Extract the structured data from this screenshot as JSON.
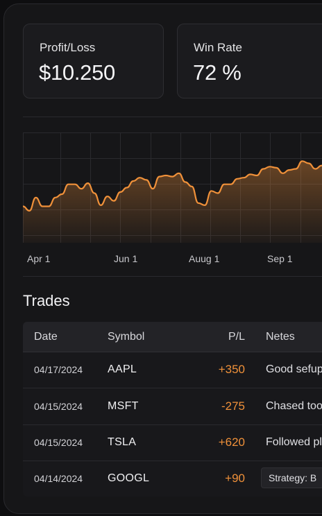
{
  "stats": {
    "profit_label": "Profit/Loss",
    "profit_value": "$10.250",
    "winrate_label": "Win Rate",
    "winrate_value": "72 %"
  },
  "chart_data": {
    "type": "area",
    "title": "",
    "xlabel": "",
    "ylabel": "",
    "x_ticks": [
      "Apr 1",
      "Jun 1",
      "Auug 1",
      "Sep 1"
    ],
    "grid": true,
    "line_color": "#f0913a",
    "values": [
      33,
      29,
      41,
      33,
      33,
      41,
      44,
      53,
      53,
      49,
      54,
      45,
      34,
      42,
      38,
      46,
      50,
      56,
      59,
      57,
      49,
      60,
      61,
      60,
      63,
      55,
      51,
      36,
      34,
      47,
      45,
      53,
      53,
      58,
      59,
      62,
      61,
      67,
      69,
      68,
      63,
      66,
      67,
      74,
      72,
      67,
      70,
      69
    ]
  },
  "trades": {
    "title": "Trades",
    "headers": {
      "date": "Date",
      "symbol": "Symbol",
      "pl": "P/L",
      "notes": "Netes"
    },
    "rows": [
      {
        "date": "04/17/2024",
        "symbol": "AAPL",
        "pl": "+350",
        "note": "Good sefup"
      },
      {
        "date": "04/15/2024",
        "symbol": "MSFT",
        "pl": "-275",
        "note": "Chased too"
      },
      {
        "date": "04/15/2024",
        "symbol": "TSLA",
        "pl": "+620",
        "note": "Followed pl"
      },
      {
        "date": "04/14/2024",
        "symbol": "GOOGL",
        "pl": "+90",
        "note": "Strategy: B"
      }
    ]
  },
  "colors": {
    "accent": "#f0913a",
    "background": "#161618",
    "card": "#1b1b1e"
  }
}
